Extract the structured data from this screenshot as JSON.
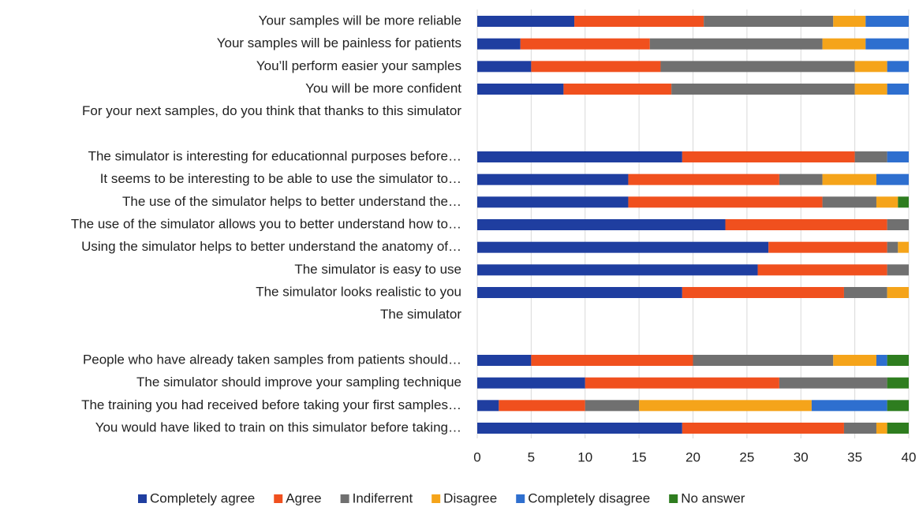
{
  "chart_data": {
    "type": "stacked_barh",
    "categories": [
      "Your samples will be more reliable",
      "Your samples will be painless for patients",
      "You’ll perform easier your samples",
      "You will be more confident",
      "For your next samples, do you think that thanks to this simulator",
      null,
      "The simulator is interesting for educationnal purposes before…",
      "It seems to be interesting to be able to use the simulator to…",
      "The use of the simulator helps to better understand the…",
      "The use of the simulator allows you to better understand how to…",
      "Using the simulator helps to better understand the anatomy of…",
      "The simulator is easy to use",
      "The simulator looks realistic to you",
      "The simulator",
      null,
      "People who have already taken samples from patients should…",
      "The simulator should improve your sampling technique",
      "The training you had received before taking your first samples…",
      "You would have liked to train on this simulator before taking…"
    ],
    "series": [
      {
        "name": "Completely agree",
        "color": "#1f3ea0",
        "values": [
          9,
          4,
          5,
          8,
          null,
          null,
          19,
          14,
          14,
          23,
          27,
          26,
          19,
          null,
          null,
          5,
          10,
          2,
          19
        ]
      },
      {
        "name": "Agree",
        "color": "#f0501e",
        "values": [
          12,
          12,
          12,
          10,
          null,
          null,
          16,
          14,
          18,
          15,
          11,
          12,
          15,
          null,
          null,
          15,
          18,
          8,
          15
        ]
      },
      {
        "name": "Indiferrent",
        "color": "#707070",
        "values": [
          12,
          16,
          18,
          17,
          null,
          null,
          3,
          4,
          5,
          2,
          1,
          2,
          4,
          null,
          null,
          13,
          10,
          5,
          3
        ]
      },
      {
        "name": "Disagree",
        "color": "#f5a41a",
        "values": [
          3,
          4,
          3,
          3,
          null,
          null,
          0,
          5,
          2,
          0,
          1,
          0,
          2,
          null,
          null,
          4,
          0,
          16,
          1
        ]
      },
      {
        "name": "Completely disagree",
        "color": "#2e6fcf",
        "values": [
          4,
          4,
          2,
          2,
          null,
          null,
          2,
          3,
          0,
          0,
          0,
          0,
          0,
          null,
          null,
          1,
          0,
          7,
          0
        ]
      },
      {
        "name": "No answer",
        "color": "#2e7d1f",
        "values": [
          0,
          0,
          0,
          0,
          null,
          null,
          0,
          0,
          1,
          0,
          0,
          0,
          0,
          null,
          null,
          2,
          2,
          2,
          2
        ]
      }
    ],
    "xlim": [
      0,
      40
    ],
    "xticks": [
      0,
      5,
      10,
      15,
      20,
      25,
      30,
      35,
      40
    ],
    "grid": true,
    "legend": "bottom"
  }
}
